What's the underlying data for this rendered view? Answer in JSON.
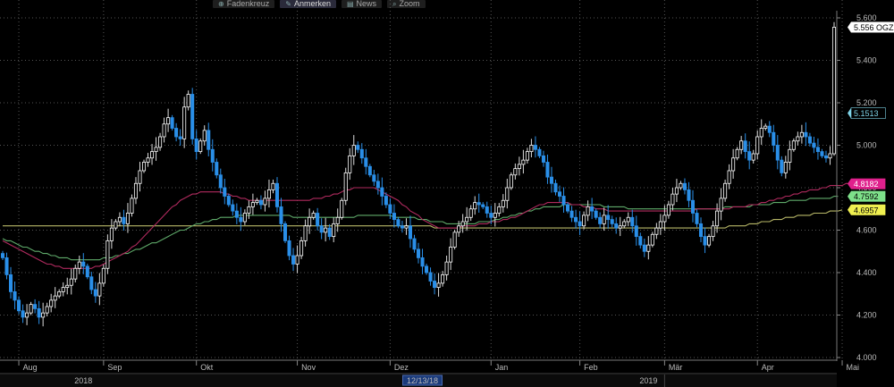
{
  "toolbar": {
    "buttons": [
      {
        "label": "Fadenkreuz",
        "icon": "crosshair-icon",
        "glyph": "⊕"
      },
      {
        "label": "Anmerken",
        "icon": "pencil-icon",
        "glyph": "✎"
      },
      {
        "label": "News",
        "icon": "news-icon",
        "glyph": "▤"
      },
      {
        "label": "Zoom",
        "icon": "zoom-icon",
        "glyph": "⌕"
      }
    ]
  },
  "chart_data": {
    "type": "candlestick",
    "y_range": [
      4.0,
      5.6
    ],
    "y_ticks": [
      "5.600",
      "5.400",
      "5.200",
      "5.000",
      "4.800",
      "4.600",
      "4.400",
      "4.200",
      "4.000"
    ],
    "y_tick_values": [
      5.6,
      5.4,
      5.2,
      5.0,
      4.8,
      4.6,
      4.4,
      4.2,
      4.0
    ],
    "month_labels": [
      "Aug",
      "Sep",
      "Okt",
      "Nov",
      "Dez",
      "Jan",
      "Feb",
      "Mär",
      "Apr",
      "Mai"
    ],
    "month_start_index": [
      4,
      25,
      48,
      73,
      96,
      121,
      143,
      164,
      187,
      208
    ],
    "year_labels": [
      {
        "label": "2018",
        "index": 20
      },
      {
        "label": "2019",
        "index": 160
      }
    ],
    "crosshair_date": {
      "label": "12/13/18",
      "index": 104
    },
    "close": [
      4.47,
      4.39,
      4.31,
      4.27,
      4.22,
      4.19,
      4.21,
      4.25,
      4.23,
      4.19,
      4.21,
      4.24,
      4.27,
      4.29,
      4.31,
      4.33,
      4.34,
      4.37,
      4.42,
      4.45,
      4.43,
      4.38,
      4.32,
      4.29,
      4.35,
      4.42,
      4.55,
      4.61,
      4.64,
      4.66,
      4.63,
      4.68,
      4.75,
      4.82,
      4.88,
      4.92,
      4.94,
      4.97,
      4.99,
      5.04,
      5.1,
      5.13,
      5.08,
      5.04,
      5.03,
      5.18,
      5.24,
      5.03,
      4.97,
      5.02,
      5.07,
      4.98,
      4.92,
      4.86,
      4.8,
      4.76,
      4.72,
      4.69,
      4.66,
      4.64,
      4.68,
      4.71,
      4.73,
      4.74,
      4.72,
      4.75,
      4.79,
      4.82,
      4.71,
      4.63,
      4.55,
      4.48,
      4.44,
      4.48,
      4.55,
      4.62,
      4.66,
      4.68,
      4.62,
      4.59,
      4.61,
      4.57,
      4.63,
      4.66,
      4.74,
      4.87,
      4.95,
      5.0,
      4.98,
      4.94,
      4.9,
      4.86,
      4.83,
      4.8,
      4.76,
      4.72,
      4.68,
      4.65,
      4.62,
      4.61,
      4.62,
      4.56,
      4.51,
      4.47,
      4.43,
      4.4,
      4.36,
      4.33,
      4.35,
      4.39,
      4.45,
      4.52,
      4.59,
      4.62,
      4.64,
      4.66,
      4.7,
      4.73,
      4.72,
      4.71,
      4.68,
      4.66,
      4.68,
      4.71,
      4.74,
      4.8,
      4.86,
      4.89,
      4.91,
      4.93,
      4.97,
      5.0,
      4.98,
      4.95,
      4.92,
      4.85,
      4.82,
      4.78,
      4.76,
      4.72,
      4.69,
      4.66,
      4.64,
      4.62,
      4.67,
      4.71,
      4.69,
      4.66,
      4.63,
      4.67,
      4.65,
      4.63,
      4.61,
      4.62,
      4.64,
      4.66,
      4.62,
      4.57,
      4.53,
      4.5,
      4.53,
      4.58,
      4.61,
      4.64,
      4.67,
      4.72,
      4.77,
      4.8,
      4.82,
      4.79,
      4.74,
      4.68,
      4.63,
      4.57,
      4.53,
      4.57,
      4.62,
      4.69,
      4.75,
      4.82,
      4.88,
      4.94,
      4.98,
      5.02,
      4.97,
      4.93,
      4.96,
      5.04,
      5.08,
      5.09,
      5.06,
      5.0,
      4.93,
      4.87,
      4.92,
      4.98,
      5.02,
      5.04,
      5.06,
      5.04,
      5.01,
      4.99,
      4.97,
      4.95,
      4.94,
      4.96,
      5.556
    ],
    "ma_red": [
      4.55,
      4.54,
      4.53,
      4.52,
      4.51,
      4.5,
      4.49,
      4.48,
      4.47,
      4.46,
      4.45,
      4.44,
      4.44,
      4.43,
      4.43,
      4.42,
      4.42,
      4.42,
      4.42,
      4.42,
      4.42,
      4.42,
      4.42,
      4.43,
      4.43,
      4.44,
      4.45,
      4.46,
      4.47,
      4.48,
      4.49,
      4.5,
      4.52,
      4.53,
      4.55,
      4.57,
      4.59,
      4.61,
      4.63,
      4.65,
      4.67,
      4.69,
      4.71,
      4.72,
      4.74,
      4.75,
      4.76,
      4.77,
      4.77,
      4.78,
      4.78,
      4.78,
      4.78,
      4.78,
      4.78,
      4.77,
      4.77,
      4.76,
      4.76,
      4.75,
      4.75,
      4.74,
      4.74,
      4.74,
      4.74,
      4.74,
      4.74,
      4.74,
      4.74,
      4.74,
      4.74,
      4.74,
      4.74,
      4.74,
      4.74,
      4.74,
      4.74,
      4.75,
      4.75,
      4.75,
      4.76,
      4.76,
      4.77,
      4.77,
      4.78,
      4.79,
      4.79,
      4.8,
      4.8,
      4.8,
      4.8,
      4.8,
      4.8,
      4.79,
      4.78,
      4.77,
      4.76,
      4.75,
      4.74,
      4.72,
      4.71,
      4.69,
      4.68,
      4.67,
      4.65,
      4.64,
      4.63,
      4.62,
      4.61,
      4.61,
      4.61,
      4.61,
      4.61,
      4.61,
      4.62,
      4.62,
      4.62,
      4.62,
      4.63,
      4.63,
      4.63,
      4.64,
      4.64,
      4.64,
      4.65,
      4.65,
      4.66,
      4.66,
      4.67,
      4.68,
      4.69,
      4.7,
      4.71,
      4.72,
      4.72,
      4.73,
      4.73,
      4.73,
      4.73,
      4.73,
      4.73,
      4.72,
      4.72,
      4.72,
      4.71,
      4.71,
      4.71,
      4.7,
      4.7,
      4.7,
      4.69,
      4.69,
      4.69,
      4.69,
      4.69,
      4.69,
      4.69,
      4.69,
      4.69,
      4.69,
      4.69,
      4.69,
      4.69,
      4.69,
      4.69,
      4.69,
      4.69,
      4.69,
      4.69,
      4.69,
      4.69,
      4.69,
      4.7,
      4.7,
      4.7,
      4.7,
      4.7,
      4.7,
      4.7,
      4.7,
      4.7,
      4.71,
      4.71,
      4.71,
      4.71,
      4.72,
      4.72,
      4.72,
      4.73,
      4.73,
      4.74,
      4.74,
      4.75,
      4.75,
      4.76,
      4.76,
      4.77,
      4.77,
      4.78,
      4.78,
      4.79,
      4.79,
      4.79,
      4.8,
      4.8,
      4.81,
      4.81,
      4.81,
      4.81,
      4.82,
      4.8182
    ],
    "ma_green": [
      4.56,
      4.55,
      4.55,
      4.54,
      4.53,
      4.52,
      4.52,
      4.51,
      4.5,
      4.5,
      4.49,
      4.49,
      4.48,
      4.48,
      4.47,
      4.47,
      4.47,
      4.46,
      4.46,
      4.46,
      4.46,
      4.46,
      4.46,
      4.46,
      4.46,
      4.47,
      4.47,
      4.47,
      4.48,
      4.48,
      4.49,
      4.49,
      4.5,
      4.51,
      4.51,
      4.52,
      4.53,
      4.54,
      4.54,
      4.55,
      4.56,
      4.57,
      4.58,
      4.59,
      4.6,
      4.6,
      4.61,
      4.62,
      4.63,
      4.63,
      4.64,
      4.64,
      4.65,
      4.65,
      4.66,
      4.66,
      4.66,
      4.66,
      4.67,
      4.67,
      4.67,
      4.67,
      4.67,
      4.67,
      4.67,
      4.67,
      4.67,
      4.67,
      4.67,
      4.67,
      4.67,
      4.67,
      4.66,
      4.66,
      4.66,
      4.66,
      4.66,
      4.66,
      4.66,
      4.66,
      4.66,
      4.66,
      4.66,
      4.66,
      4.66,
      4.66,
      4.66,
      4.66,
      4.67,
      4.67,
      4.67,
      4.67,
      4.67,
      4.67,
      4.67,
      4.67,
      4.67,
      4.66,
      4.66,
      4.66,
      4.66,
      4.66,
      4.66,
      4.65,
      4.65,
      4.65,
      4.64,
      4.64,
      4.64,
      4.64,
      4.63,
      4.63,
      4.63,
      4.63,
      4.63,
      4.63,
      4.63,
      4.63,
      4.64,
      4.64,
      4.64,
      4.64,
      4.65,
      4.65,
      4.66,
      4.66,
      4.67,
      4.67,
      4.68,
      4.68,
      4.69,
      4.69,
      4.7,
      4.7,
      4.71,
      4.71,
      4.71,
      4.71,
      4.71,
      4.72,
      4.72,
      4.72,
      4.72,
      4.72,
      4.72,
      4.72,
      4.72,
      4.72,
      4.72,
      4.71,
      4.71,
      4.71,
      4.71,
      4.71,
      4.71,
      4.7,
      4.7,
      4.7,
      4.7,
      4.7,
      4.7,
      4.7,
      4.7,
      4.7,
      4.7,
      4.7,
      4.7,
      4.7,
      4.7,
      4.7,
      4.7,
      4.7,
      4.7,
      4.7,
      4.7,
      4.7,
      4.7,
      4.7,
      4.7,
      4.71,
      4.71,
      4.71,
      4.71,
      4.71,
      4.71,
      4.71,
      4.72,
      4.72,
      4.72,
      4.72,
      4.72,
      4.73,
      4.73,
      4.73,
      4.73,
      4.74,
      4.74,
      4.74,
      4.74,
      4.74,
      4.75,
      4.75,
      4.75,
      4.75,
      4.75,
      4.75,
      4.76,
      4.7592
    ],
    "ma_yellow": [
      4.62,
      4.62,
      4.62,
      4.62,
      4.62,
      4.62,
      4.62,
      4.62,
      4.62,
      4.62,
      4.62,
      4.62,
      4.62,
      4.62,
      4.62,
      4.62,
      4.62,
      4.62,
      4.62,
      4.62,
      4.62,
      4.62,
      4.62,
      4.62,
      4.62,
      4.62,
      4.62,
      4.62,
      4.62,
      4.62,
      4.62,
      4.62,
      4.62,
      4.62,
      4.62,
      4.62,
      4.62,
      4.62,
      4.62,
      4.62,
      4.62,
      4.62,
      4.62,
      4.62,
      4.62,
      4.62,
      4.62,
      4.62,
      4.62,
      4.62,
      4.62,
      4.62,
      4.62,
      4.62,
      4.62,
      4.62,
      4.62,
      4.62,
      4.62,
      4.62,
      4.62,
      4.62,
      4.62,
      4.62,
      4.62,
      4.62,
      4.62,
      4.62,
      4.62,
      4.62,
      4.62,
      4.62,
      4.62,
      4.62,
      4.62,
      4.62,
      4.62,
      4.62,
      4.62,
      4.62,
      4.62,
      4.62,
      4.62,
      4.62,
      4.62,
      4.62,
      4.62,
      4.62,
      4.62,
      4.62,
      4.62,
      4.62,
      4.62,
      4.62,
      4.62,
      4.62,
      4.62,
      4.62,
      4.62,
      4.62,
      4.62,
      4.62,
      4.62,
      4.62,
      4.62,
      4.62,
      4.62,
      4.61,
      4.61,
      4.61,
      4.61,
      4.61,
      4.61,
      4.61,
      4.61,
      4.61,
      4.61,
      4.61,
      4.61,
      4.61,
      4.61,
      4.61,
      4.61,
      4.61,
      4.61,
      4.61,
      4.61,
      4.61,
      4.61,
      4.61,
      4.61,
      4.61,
      4.61,
      4.61,
      4.61,
      4.61,
      4.61,
      4.61,
      4.61,
      4.61,
      4.61,
      4.61,
      4.61,
      4.61,
      4.61,
      4.61,
      4.61,
      4.61,
      4.61,
      4.61,
      4.61,
      4.61,
      4.61,
      4.61,
      4.61,
      4.61,
      4.61,
      4.61,
      4.61,
      4.61,
      4.61,
      4.61,
      4.61,
      4.61,
      4.61,
      4.61,
      4.61,
      4.61,
      4.61,
      4.61,
      4.61,
      4.61,
      4.61,
      4.61,
      4.61,
      4.61,
      4.61,
      4.61,
      4.61,
      4.61,
      4.62,
      4.62,
      4.62,
      4.62,
      4.62,
      4.63,
      4.63,
      4.63,
      4.64,
      4.64,
      4.64,
      4.65,
      4.65,
      4.65,
      4.66,
      4.66,
      4.66,
      4.67,
      4.67,
      4.67,
      4.67,
      4.68,
      4.68,
      4.68,
      4.68,
      4.69,
      4.69,
      4.69,
      4.6957
    ],
    "labels": [
      {
        "text": "5.556 OGZD",
        "value": 5.556,
        "bg": "#ffffff",
        "fg": "#000000"
      },
      {
        "text": "5.1513",
        "value": 5.1513,
        "bg": "#000000",
        "fg": "#7fd4e8"
      },
      {
        "text": "4.8182",
        "value": 4.8182,
        "bg": "#e0208c",
        "fg": "#ffffff"
      },
      {
        "text": "4.7592",
        "value": 4.7592,
        "bg": "#7ee08a",
        "fg": "#000000"
      },
      {
        "text": "4.6957",
        "value": 4.6957,
        "bg": "#f0f050",
        "fg": "#000000"
      }
    ],
    "colors": {
      "up": "#ffffff",
      "down": "#2a8fe8",
      "ma_red": "#b02a5e",
      "ma_green": "#5faa6a",
      "ma_yellow": "#b8b868",
      "grid": "#555555"
    },
    "grid": true
  }
}
